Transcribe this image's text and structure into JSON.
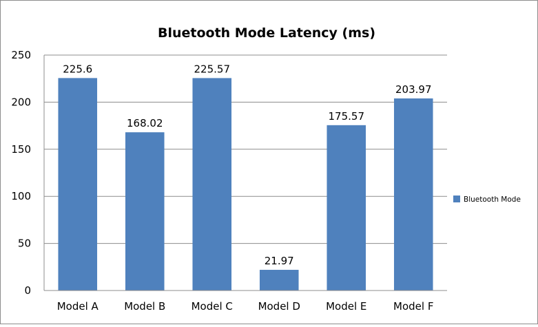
{
  "chart_data": {
    "type": "bar",
    "title": "Bluetooth Mode Latency (ms)",
    "xlabel": "",
    "ylabel": "",
    "categories": [
      "Model A",
      "Model B",
      "Model C",
      "Model D",
      "Model E",
      "Model F"
    ],
    "series": [
      {
        "name": "Bluetooth Mode",
        "values": [
          225.6,
          168.02,
          225.57,
          21.97,
          175.57,
          203.97
        ],
        "labels": [
          "225.6",
          "168.02",
          "225.57",
          "21.97",
          "175.57",
          "203.97"
        ],
        "color": "#4f81bd"
      }
    ],
    "ylim": [
      0,
      250
    ],
    "yticks": [
      0,
      50,
      100,
      150,
      200,
      250
    ],
    "grid": true,
    "legend_position": "right"
  }
}
